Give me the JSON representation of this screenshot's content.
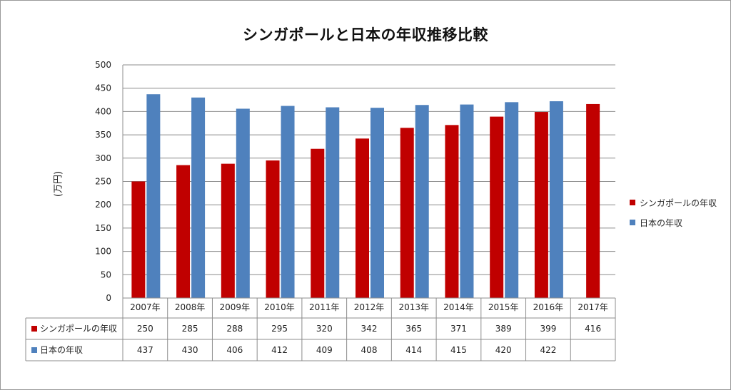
{
  "title": "シンガポールと日本の年収推移比較",
  "colors": {
    "singapore": "#C00000",
    "japan": "#4F81BD",
    "grid": "#8c8c8c",
    "border": "#8c8c8c"
  },
  "chart_data": {
    "type": "bar",
    "title": "シンガポールと日本の年収推移比較",
    "xlabel": "",
    "ylabel": "(万円)",
    "ylim": [
      0,
      500
    ],
    "yticks": [
      0,
      50,
      100,
      150,
      200,
      250,
      300,
      350,
      400,
      450,
      500
    ],
    "grid": true,
    "legend_position": "right",
    "categories": [
      "2007年",
      "2008年",
      "2009年",
      "2010年",
      "2011年",
      "2012年",
      "2013年",
      "2014年",
      "2015年",
      "2016年",
      "2017年"
    ],
    "series": [
      {
        "name": "シンガポールの年収",
        "color": "#C00000",
        "values": [
          250,
          285,
          288,
          295,
          320,
          342,
          365,
          371,
          389,
          399,
          416
        ]
      },
      {
        "name": "日本の年収",
        "color": "#4F81BD",
        "values": [
          437,
          430,
          406,
          412,
          409,
          408,
          414,
          415,
          420,
          422,
          null
        ]
      }
    ]
  }
}
